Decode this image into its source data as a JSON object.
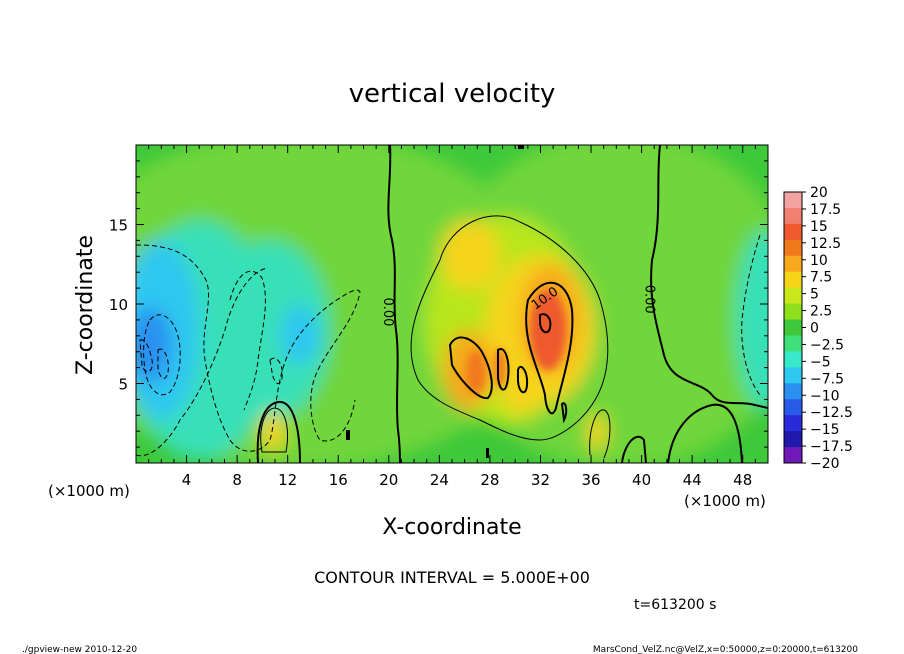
{
  "chart_data": {
    "type": "heatmap",
    "title": "vertical velocity",
    "xlabel": "X-coordinate",
    "ylabel": "Z-coordinate",
    "x_unit_left": "(×1000 m)",
    "x_unit_right": "(×1000 m)",
    "xlim": [
      0,
      50
    ],
    "ylim": [
      0,
      20
    ],
    "x_ticks": [
      4,
      8,
      12,
      16,
      20,
      24,
      28,
      32,
      36,
      40,
      44,
      48
    ],
    "x_tick_labels": [
      "4",
      "8",
      "12",
      "16",
      "20",
      "24",
      "28",
      "32",
      "36",
      "40",
      "44",
      "48"
    ],
    "y_ticks": [
      5,
      10,
      15
    ],
    "y_tick_labels": [
      "5",
      "10",
      "15"
    ],
    "contour_interval": "CONTOUR INTERVAL = 5.000E+00",
    "contour_labels": [
      {
        "text": "0.00",
        "x": 20.0,
        "y": 9.5
      },
      {
        "text": "0.00",
        "x": 40.7,
        "y": 10.3
      },
      {
        "text": "10.0",
        "x": 32.3,
        "y": 10.4
      }
    ],
    "colorbar": {
      "levels": [
        20,
        17.5,
        15,
        12.5,
        10,
        7.5,
        5,
        2.5,
        0,
        -2.5,
        -5,
        -7.5,
        -10,
        -12.5,
        -15,
        -17.5,
        -20
      ],
      "labels": [
        "20",
        "17.5",
        "15",
        "12.5",
        "10",
        "7.5",
        "5",
        "2.5",
        "0",
        "−2.5",
        "−5",
        "−7.5",
        "−10",
        "−12.5",
        "−15",
        "−17.5",
        "−20"
      ],
      "colors": [
        "#f4a3a3",
        "#f08070",
        "#ee5a2e",
        "#f07a1a",
        "#f7a81c",
        "#f6d41a",
        "#c8e81c",
        "#8ee01c",
        "#3ec83a",
        "#3ee07a",
        "#38e8c8",
        "#2ec8f0",
        "#2a90f0",
        "#2a5ae8",
        "#2a2ad8",
        "#2018a8",
        "#7018b8"
      ]
    },
    "field_regions": [
      {
        "name": "positive-updraft-core",
        "center_x": 32.5,
        "center_y": 8.5,
        "value": 15
      },
      {
        "name": "positive-lobe-left",
        "center_x": 26.0,
        "center_y": 6.0,
        "value": 10
      },
      {
        "name": "positive-lobe-top",
        "center_x": 27.0,
        "center_y": 13.0,
        "value": 7.5
      },
      {
        "name": "positive-small-cell",
        "center_x": 11.0,
        "center_y": 2.0,
        "value": 7.5
      },
      {
        "name": "negative-downdraft-left",
        "center_x": 2.0,
        "center_y": 7.0,
        "value": -10
      },
      {
        "name": "negative-downdraft-mid",
        "center_x": 9.0,
        "center_y": 6.0,
        "value": -5
      },
      {
        "name": "negative-right-edge",
        "center_x": 49.0,
        "center_y": 9.0,
        "value": -5
      }
    ]
  },
  "footer": {
    "time_label": "t=613200 s",
    "program_label": "./gpview-new  2010-12-20",
    "source_label": "MarsCond_VelZ.nc@VelZ,x=0:50000,z=0:20000,t=613200"
  }
}
